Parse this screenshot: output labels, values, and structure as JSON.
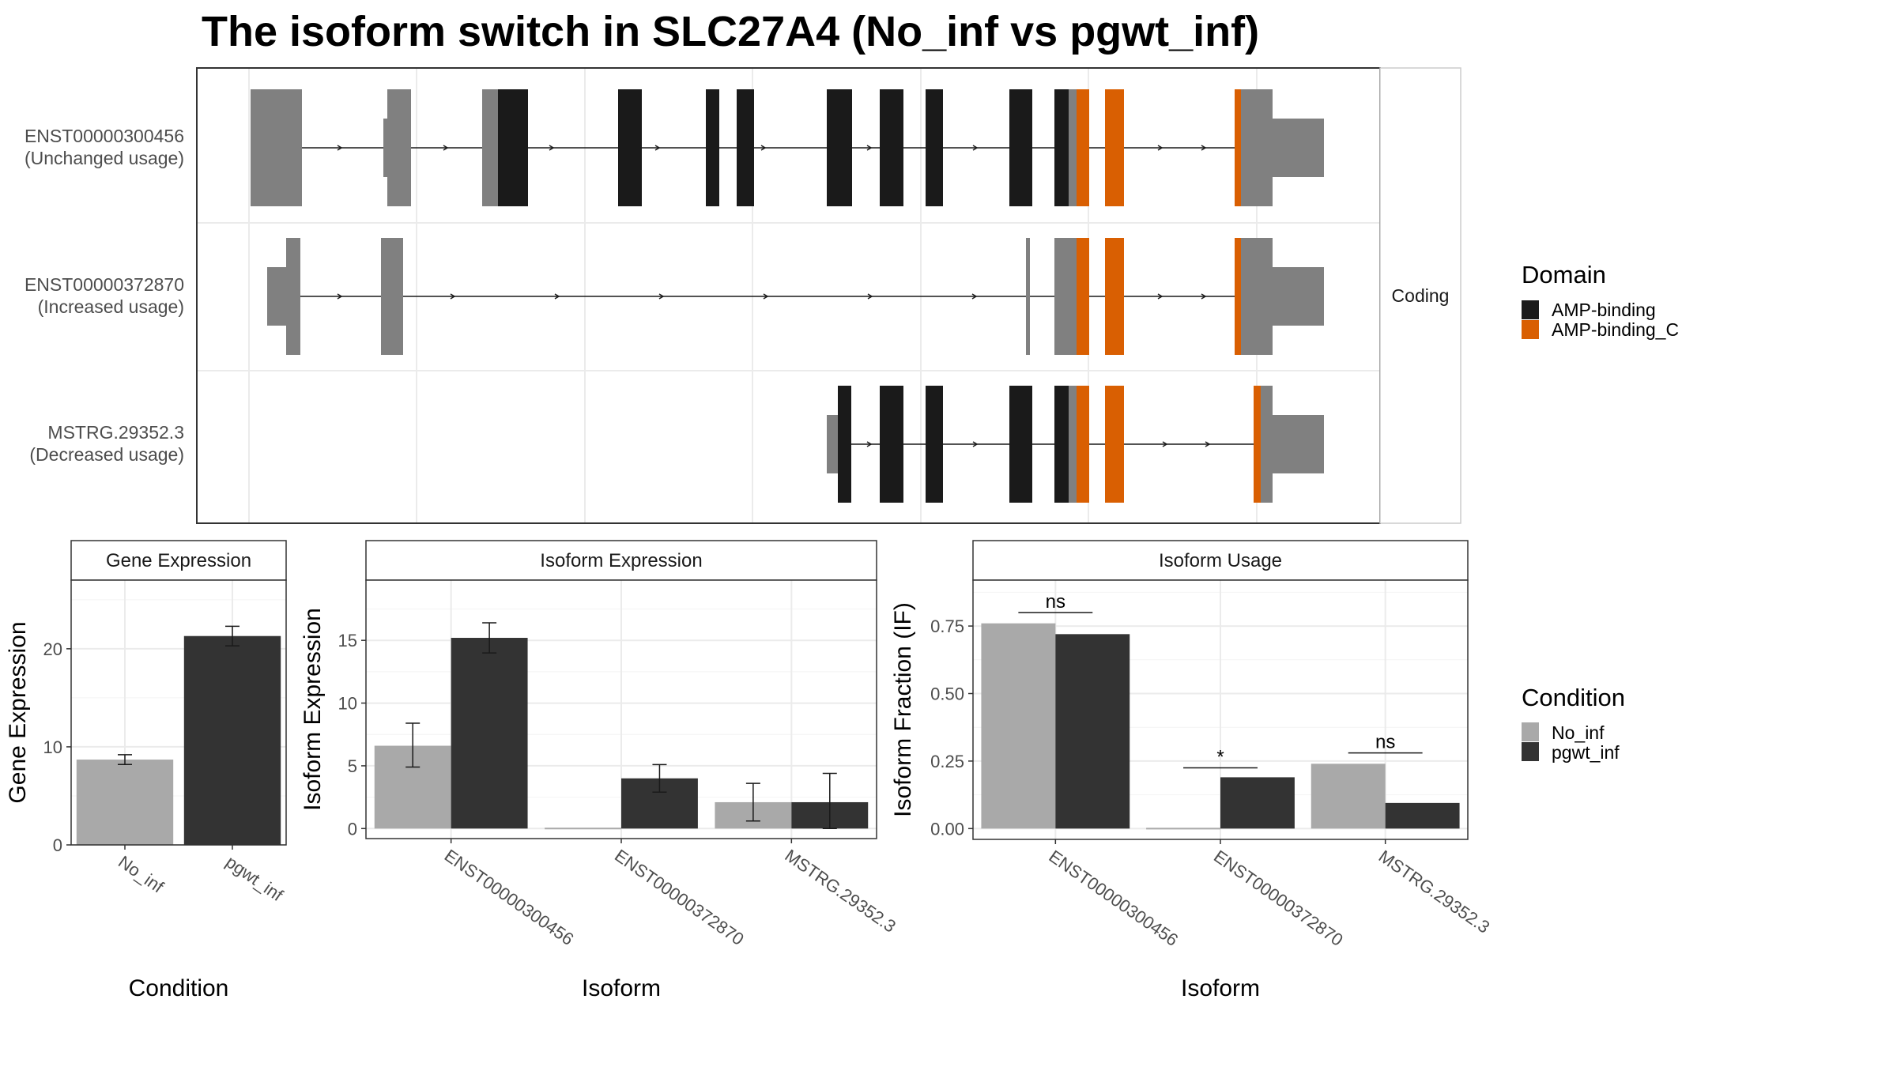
{
  "title": "The isoform switch in SLC27A4 (No_inf vs pgwt_inf)",
  "colors": {
    "exon_other": "#808080",
    "amp_binding": "#1a1a1a",
    "amp_binding_c": "#d95f02",
    "no_inf": "#a9a9a9",
    "pgwt_inf": "#333333",
    "grid": "#ebebeb",
    "panel_border": "#333333"
  },
  "transcript_panel": {
    "strip_label": "Coding",
    "transcripts": [
      {
        "id": "ENST00000300456",
        "usage": "(Unchanged usage)"
      },
      {
        "id": "ENST00000372870",
        "usage": "(Increased usage)"
      },
      {
        "id": "MSTRG.29352.3",
        "usage": "(Decreased usage)"
      }
    ]
  },
  "legend_domain": {
    "title": "Domain",
    "items": [
      {
        "label": "AMP-binding",
        "color": "#1a1a1a"
      },
      {
        "label": "AMP-binding_C",
        "color": "#d95f02"
      }
    ]
  },
  "legend_condition": {
    "title": "Condition",
    "items": [
      {
        "label": "No_inf",
        "color": "#a9a9a9"
      },
      {
        "label": "pgwt_inf",
        "color": "#333333"
      }
    ]
  },
  "chart_data": [
    {
      "type": "bar",
      "title": "Gene Expression",
      "xlabel": "Condition",
      "ylabel": "Gene Expression",
      "categories": [
        "No_inf",
        "pgwt_inf"
      ],
      "values": [
        8.7,
        21.3
      ],
      "error": [
        [
          8.2,
          9.2
        ],
        [
          20.3,
          22.3
        ]
      ],
      "ylim": [
        0,
        27
      ],
      "yticks": [
        0,
        10,
        20
      ]
    },
    {
      "type": "bar",
      "title": "Isoform Expression",
      "xlabel": "Isoform",
      "ylabel": "Isoform Expression",
      "categories": [
        "ENST00000300456",
        "ENST00000372870",
        "MSTRG.29352.3"
      ],
      "series": [
        {
          "name": "No_inf",
          "values": [
            6.6,
            0.0,
            2.1
          ],
          "error": [
            [
              4.9,
              8.4
            ],
            [
              0.0,
              0.0
            ],
            [
              0.6,
              3.6
            ]
          ]
        },
        {
          "name": "pgwt_inf",
          "values": [
            15.2,
            4.0,
            2.1
          ],
          "error": [
            [
              14.0,
              16.4
            ],
            [
              2.9,
              5.1
            ],
            [
              0.0,
              4.4
            ]
          ]
        }
      ],
      "ylim": [
        -0.8,
        19.8
      ],
      "yticks": [
        0,
        5,
        10,
        15
      ]
    },
    {
      "type": "bar",
      "title": "Isoform Usage",
      "xlabel": "Isoform",
      "ylabel": "Isoform Fraction (IF)",
      "categories": [
        "ENST00000300456",
        "ENST00000372870",
        "MSTRG.29352.3"
      ],
      "series": [
        {
          "name": "No_inf",
          "values": [
            0.76,
            0.0,
            0.24
          ]
        },
        {
          "name": "pgwt_inf",
          "values": [
            0.72,
            0.19,
            0.095
          ]
        }
      ],
      "significance": [
        "ns",
        "*",
        "ns"
      ],
      "sig_y": [
        0.8,
        0.225,
        0.28
      ],
      "ylim": [
        -0.04,
        0.92
      ],
      "yticks": [
        "0.00",
        "0.25",
        "0.50",
        "0.75"
      ]
    }
  ]
}
